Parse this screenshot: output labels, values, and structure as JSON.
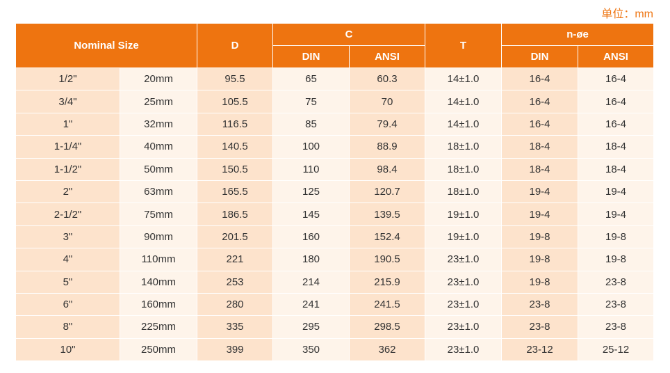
{
  "unit": "单位：mm",
  "table": {
    "header_row1": [
      "Nominal Size",
      "D",
      "C",
      "T",
      "n-øe"
    ],
    "header_row2": [
      "DIN",
      "ANSI",
      "DIN",
      "ANSI"
    ],
    "rows": [
      [
        "1/2\"",
        "20mm",
        "95.5",
        "65",
        "60.3",
        "14±1.0",
        "16-4",
        "16-4"
      ],
      [
        "3/4\"",
        "25mm",
        "105.5",
        "75",
        "70",
        "14±1.0",
        "16-4",
        "16-4"
      ],
      [
        "1\"",
        "32mm",
        "116.5",
        "85",
        "79.4",
        "14±1.0",
        "16-4",
        "16-4"
      ],
      [
        "1-1/4\"",
        "40mm",
        "140.5",
        "100",
        "88.9",
        "18±1.0",
        "18-4",
        "18-4"
      ],
      [
        "1-1/2\"",
        "50mm",
        "150.5",
        "110",
        "98.4",
        "18±1.0",
        "18-4",
        "18-4"
      ],
      [
        "2\"",
        "63mm",
        "165.5",
        "125",
        "120.7",
        "18±1.0",
        "19-4",
        "19-4"
      ],
      [
        "2-1/2\"",
        "75mm",
        "186.5",
        "145",
        "139.5",
        "19±1.0",
        "19-4",
        "19-4"
      ],
      [
        "3\"",
        "90mm",
        "201.5",
        "160",
        "152.4",
        "19±1.0",
        "19-8",
        "19-8"
      ],
      [
        "4\"",
        "110mm",
        "221",
        "180",
        "190.5",
        "23±1.0",
        "19-8",
        "19-8"
      ],
      [
        "5\"",
        "140mm",
        "253",
        "214",
        "215.9",
        "23±1.0",
        "19-8",
        "23-8"
      ],
      [
        "6\"",
        "160mm",
        "280",
        "241",
        "241.5",
        "23±1.0",
        "23-8",
        "23-8"
      ],
      [
        "8\"",
        "225mm",
        "335",
        "295",
        "298.5",
        "23±1.0",
        "23-8",
        "23-8"
      ],
      [
        "10\"",
        "250mm",
        "399",
        "350",
        "362",
        "23±1.0",
        "23-12",
        "25-12"
      ]
    ]
  }
}
